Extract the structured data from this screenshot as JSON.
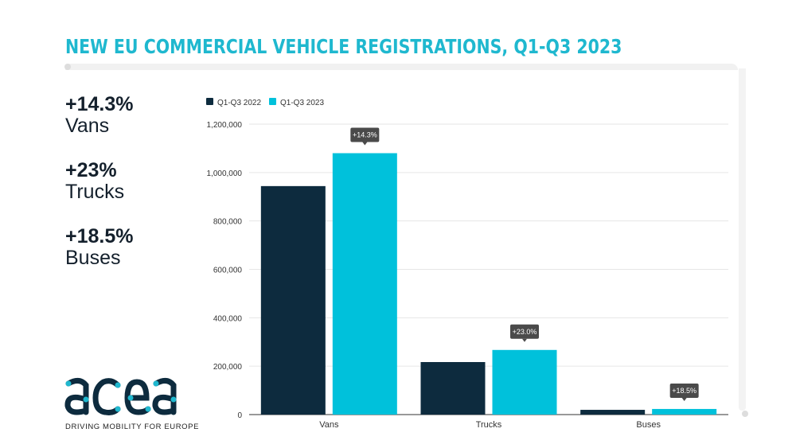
{
  "title": "NEW EU COMMERCIAL VEHICLE REGISTRATIONS, Q1-Q3 2023",
  "stats": [
    {
      "pct": "+14.3%",
      "label": "Vans"
    },
    {
      "pct": "+23%",
      "label": "Trucks"
    },
    {
      "pct": "+18.5%",
      "label": "Buses"
    }
  ],
  "logo": {
    "text": "acea",
    "tagline": "DRIVING MOBILITY FOR EUROPE"
  },
  "colors": {
    "series_2022": "#0d2b3e",
    "series_2023": "#00c1db",
    "title": "#1fb8cf",
    "tooltip": "#4a4a4a"
  },
  "chart_data": {
    "type": "bar",
    "categories": [
      "Vans",
      "Trucks",
      "Buses"
    ],
    "series": [
      {
        "name": "Q1-Q3 2022",
        "values": [
          944000,
          217000,
          19600
        ]
      },
      {
        "name": "Q1-Q3 2023",
        "values": [
          1080000,
          267000,
          23200
        ]
      }
    ],
    "annotations": [
      "+14.3%",
      "+23.0%",
      "+18.5%"
    ],
    "yticks": [
      "0",
      "200,000",
      "400,000",
      "600,000",
      "800,000",
      "1,000,000",
      "1,200,000"
    ],
    "ylim": [
      0,
      1200000
    ],
    "grid": true,
    "legend": "top-left"
  }
}
